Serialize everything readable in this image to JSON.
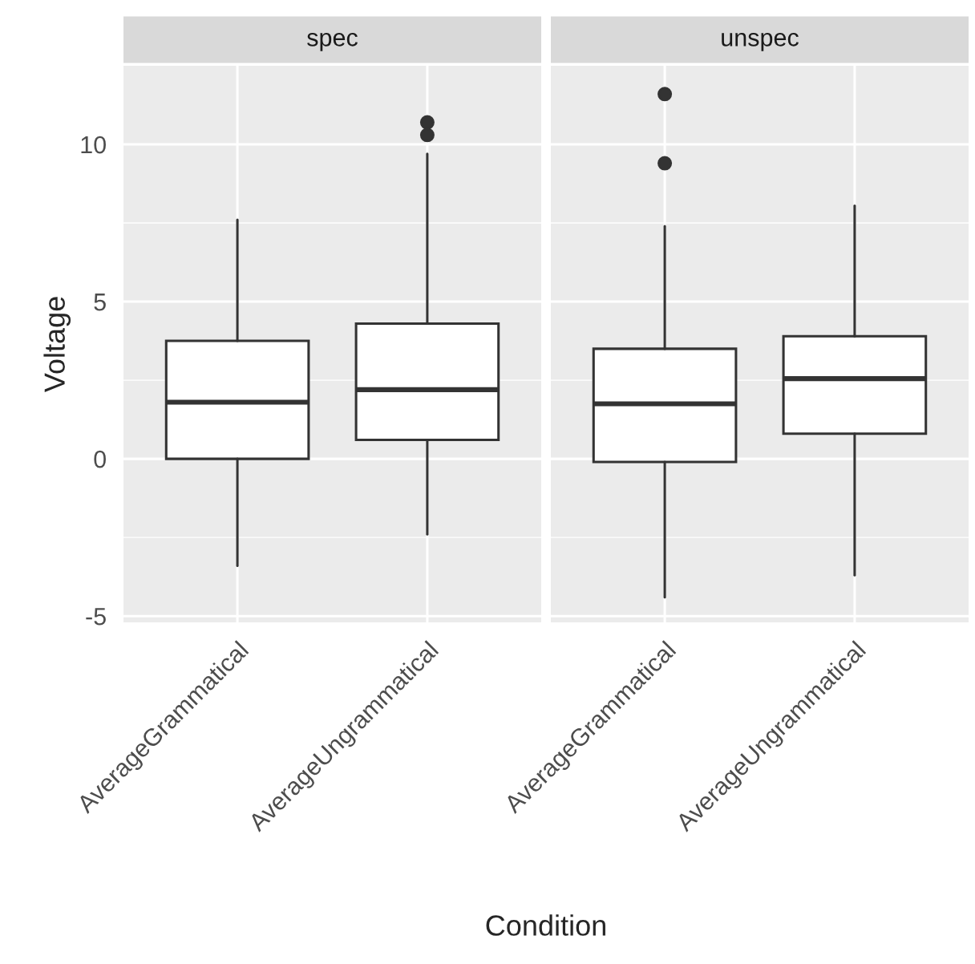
{
  "chart_data": [
    {
      "type": "box",
      "title": "spec",
      "xlabel": "Condition",
      "ylabel": "Voltage",
      "categories": [
        "AverageGrammatical",
        "AverageUngrammatical"
      ],
      "boxes": [
        {
          "low": -3.4,
          "q1": 0,
          "median": 1.8,
          "q3": 3.75,
          "high": 7.6
        },
        {
          "low": -2.4,
          "q1": 0.6,
          "median": 2.2,
          "q3": 4.3,
          "high": 9.7,
          "outliers": [
            10.3,
            10.7
          ]
        }
      ],
      "ylim": [
        -5.2,
        12.5
      ],
      "yticks": [
        -5,
        0,
        5,
        10
      ],
      "grid": true
    },
    {
      "type": "box",
      "title": "unspec",
      "categories": [
        "AverageGrammatical",
        "AverageUngrammatical"
      ],
      "boxes": [
        {
          "low": -4.4,
          "q1": -0.1,
          "median": 1.75,
          "q3": 3.5,
          "high": 7.4,
          "outliers": [
            9.4,
            11.6
          ]
        },
        {
          "low": -3.7,
          "q1": 0.8,
          "median": 2.55,
          "q3": 3.9,
          "high": 8.05
        }
      ],
      "ylim": [
        -5.2,
        12.5
      ],
      "yticks": [
        -5,
        0,
        5,
        10
      ],
      "grid": true,
      "tick_labels": "x"
    }
  ]
}
